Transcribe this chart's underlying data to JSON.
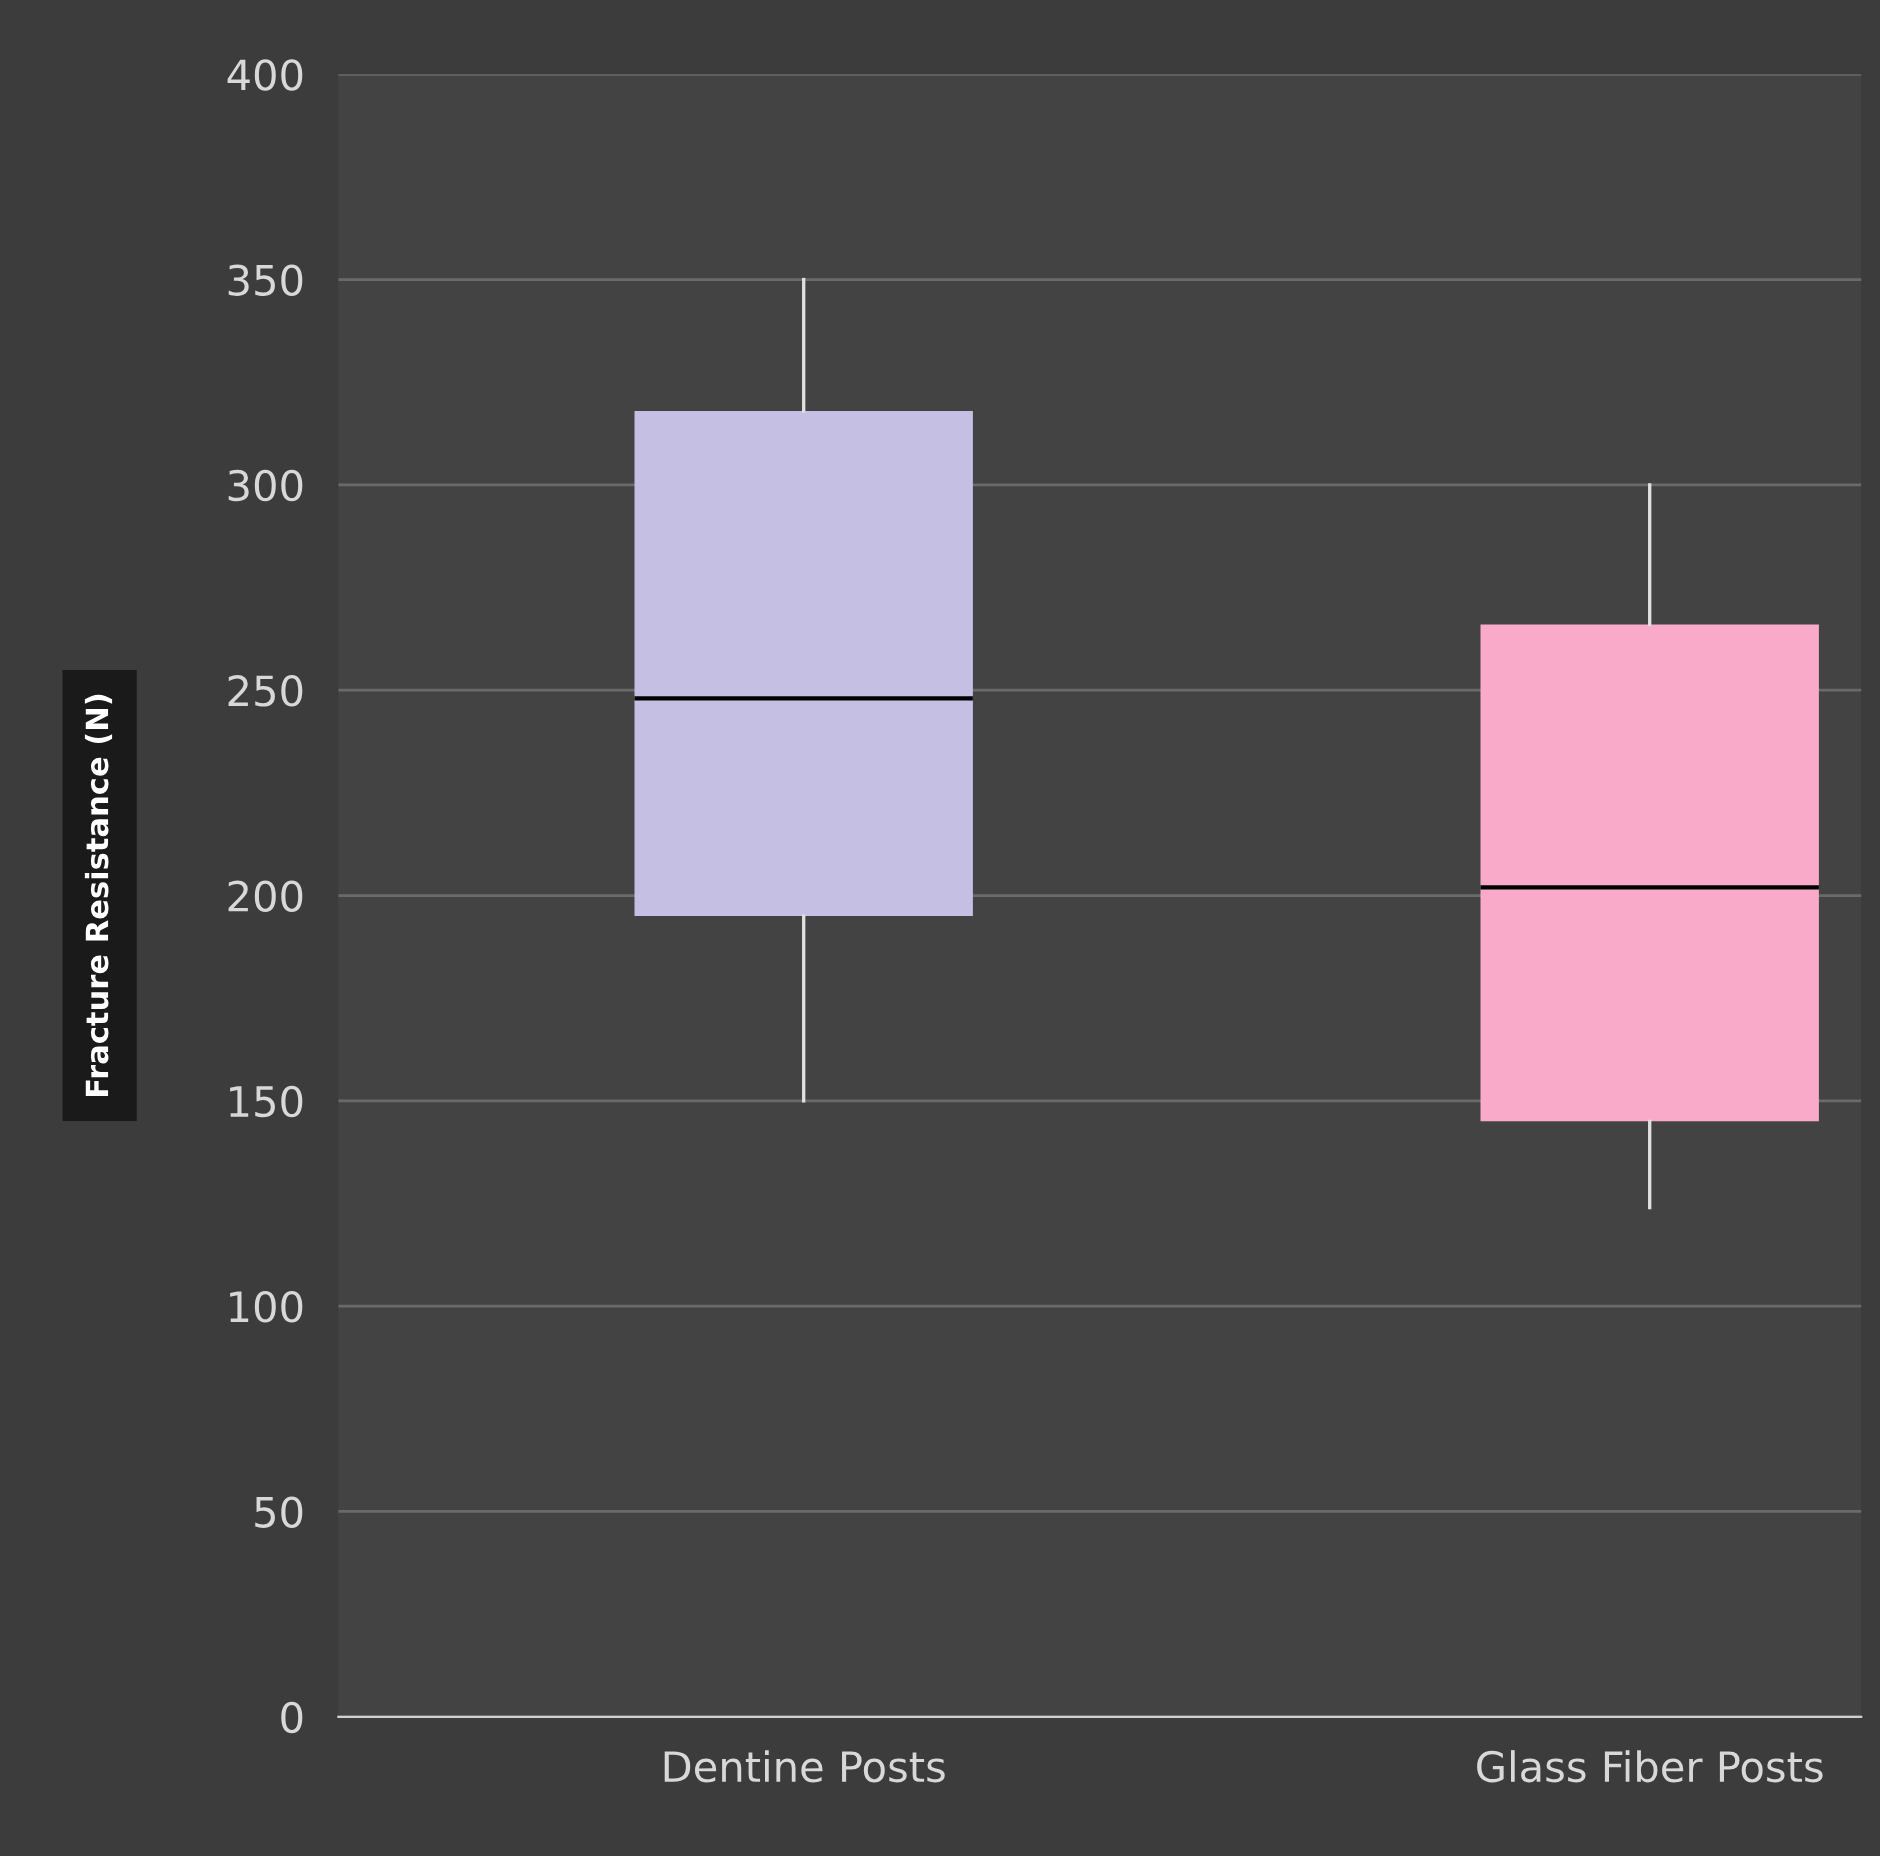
{
  "chart_data": {
    "type": "box",
    "ylabel": "Fracture Resistance (N)",
    "categories": [
      "Dentine Posts",
      "Glass Fiber Posts"
    ],
    "boxes": [
      {
        "low": 150,
        "q1": 195,
        "median": 248,
        "q3": 318,
        "high": 350
      },
      {
        "low": 124,
        "q1": 145,
        "median": 202,
        "q3": 266,
        "high": 300
      }
    ],
    "colors": [
      "#c5bfe3",
      "#f9aac8"
    ],
    "ylim": [
      0,
      400
    ],
    "yticks": [
      0,
      50,
      100,
      150,
      200,
      250,
      300,
      350,
      400
    ],
    "grid": "y"
  }
}
